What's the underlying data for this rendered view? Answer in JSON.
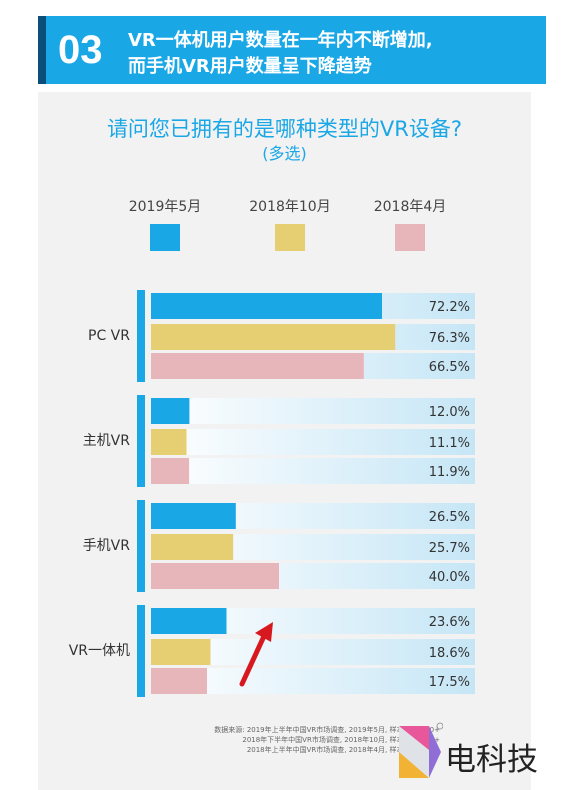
{
  "header": {
    "number": "03",
    "line1": "VR一体机用户数量在一年内不断增加,",
    "line2": "而手机VR用户数量呈下降趋势"
  },
  "question": {
    "title": "请问您已拥有的是哪种类型的VR设备?",
    "subtitle": "(多选)"
  },
  "colors": {
    "s2019_5": "#1aa7e6",
    "s2018_10": "#e6cf72",
    "s2018_4": "#e6b6bb",
    "accent": "#1aa7e6",
    "arrow": "#d7191f"
  },
  "chart_data": {
    "type": "bar",
    "orientation": "horizontal",
    "categories": [
      "PC VR",
      "主机VR",
      "手机VR",
      "VR一体机"
    ],
    "series": [
      {
        "name": "2019年5月",
        "values": [
          72.2,
          12.0,
          26.5,
          23.6
        ],
        "labels": [
          "72.2%",
          "12.0%",
          "26.5%",
          "23.6%"
        ]
      },
      {
        "name": "2018年10月",
        "values": [
          76.3,
          11.1,
          25.7,
          18.6
        ],
        "labels": [
          "76.3%",
          "11.1%",
          "25.7%",
          "18.6%"
        ]
      },
      {
        "name": "2018年4月",
        "values": [
          66.5,
          11.9,
          40.0,
          17.5
        ],
        "labels": [
          "66.5%",
          "11.9%",
          "40.0%",
          "17.5%"
        ]
      }
    ],
    "xlim": [
      0,
      100
    ],
    "value_unit": "%"
  },
  "source": {
    "lines": [
      "数据来源: 2019年上半年中国VR市场调查, 2019年5月, 样本量=4200+",
      "2018年下半年中国VR市场调查, 2018年10月, 样本量=3700+",
      "2018年上半年中国VR市场调查, 2018年4月, 样本量=4200+"
    ]
  },
  "brand": {
    "name": "电科技"
  }
}
